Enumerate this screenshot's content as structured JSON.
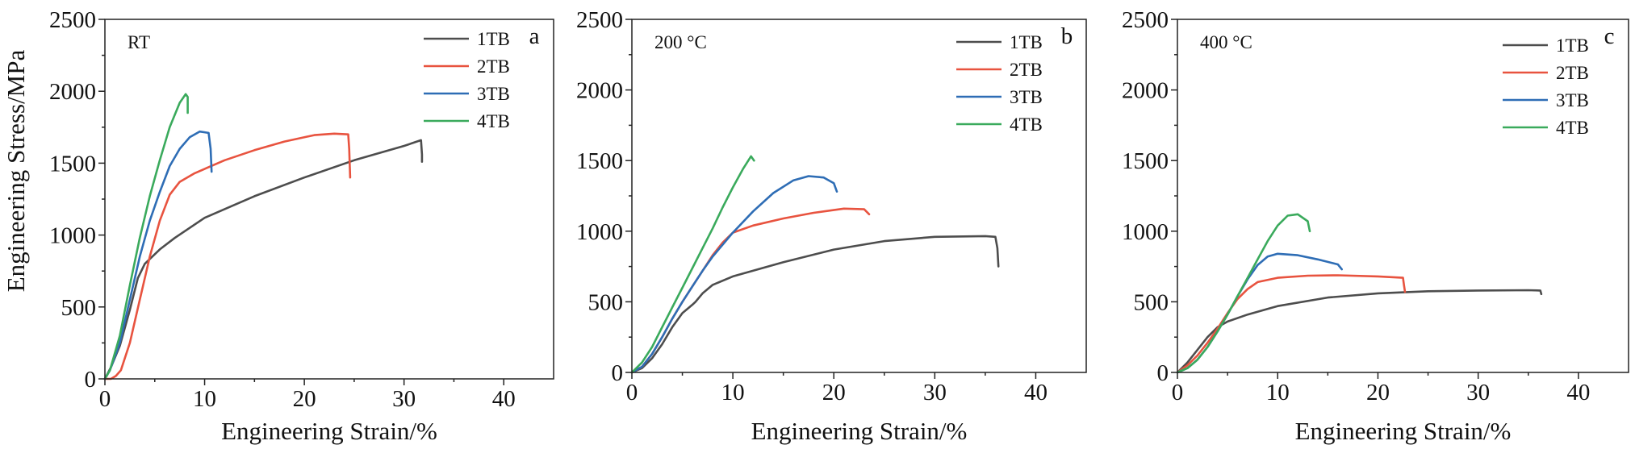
{
  "chart_data": [
    {
      "type": "line",
      "panel_label": "a",
      "condition": "RT",
      "xlabel": "Engineering Strain/%",
      "ylabel": "Engineering Stress/MPa",
      "xlim": [
        0,
        45
      ],
      "ylim": [
        0,
        2500
      ],
      "xticks": [
        0,
        10,
        20,
        30,
        40
      ],
      "yticks": [
        0,
        500,
        1000,
        1500,
        2000,
        2500
      ],
      "legend_position": "top-right",
      "series": [
        {
          "name": "1TB",
          "color": "#4d4d4d",
          "points": [
            [
              0,
              0
            ],
            [
              0.6,
              80
            ],
            [
              1.5,
              230
            ],
            [
              2.5,
              480
            ],
            [
              3.3,
              700
            ],
            [
              4,
              800
            ],
            [
              5.5,
              900
            ],
            [
              7,
              980
            ],
            [
              10,
              1120
            ],
            [
              15,
              1270
            ],
            [
              20,
              1400
            ],
            [
              25,
              1520
            ],
            [
              30,
              1620
            ],
            [
              31.7,
              1660
            ],
            [
              31.8,
              1560
            ],
            [
              31.8,
              1510
            ]
          ]
        },
        {
          "name": "2TB",
          "color": "#e8533f",
          "points": [
            [
              0,
              0
            ],
            [
              0.6,
              0
            ],
            [
              1.1,
              20
            ],
            [
              1.6,
              60
            ],
            [
              2.5,
              250
            ],
            [
              3.5,
              550
            ],
            [
              4.5,
              850
            ],
            [
              5.5,
              1100
            ],
            [
              6.5,
              1280
            ],
            [
              7.5,
              1370
            ],
            [
              9,
              1430
            ],
            [
              12,
              1520
            ],
            [
              15,
              1590
            ],
            [
              18,
              1650
            ],
            [
              21,
              1695
            ],
            [
              23,
              1705
            ],
            [
              24.4,
              1700
            ],
            [
              24.5,
              1600
            ],
            [
              24.6,
              1400
            ]
          ]
        },
        {
          "name": "3TB",
          "color": "#2e6db5",
          "points": [
            [
              0,
              0
            ],
            [
              0.5,
              60
            ],
            [
              1.5,
              250
            ],
            [
              2.5,
              550
            ],
            [
              3.5,
              850
            ],
            [
              4.5,
              1100
            ],
            [
              5.5,
              1300
            ],
            [
              6.5,
              1480
            ],
            [
              7.5,
              1600
            ],
            [
              8.5,
              1680
            ],
            [
              9.5,
              1720
            ],
            [
              10.4,
              1710
            ],
            [
              10.6,
              1600
            ],
            [
              10.7,
              1440
            ]
          ]
        },
        {
          "name": "4TB",
          "color": "#3aaa5c",
          "points": [
            [
              0,
              0
            ],
            [
              0.5,
              60
            ],
            [
              1.5,
              300
            ],
            [
              2.5,
              650
            ],
            [
              3.5,
              980
            ],
            [
              4.5,
              1270
            ],
            [
              5.5,
              1520
            ],
            [
              6.5,
              1750
            ],
            [
              7.5,
              1920
            ],
            [
              8.1,
              1980
            ],
            [
              8.3,
              1960
            ],
            [
              8.3,
              1850
            ]
          ]
        }
      ]
    },
    {
      "type": "line",
      "panel_label": "b",
      "condition": "200 °C",
      "xlabel": "Engineering Strain/%",
      "ylabel": "",
      "xlim": [
        0,
        45
      ],
      "ylim": [
        0,
        2500
      ],
      "xticks": [
        0,
        10,
        20,
        30,
        40
      ],
      "yticks": [
        0,
        500,
        1000,
        1500,
        2000,
        2500
      ],
      "legend_position": "top-right",
      "series": [
        {
          "name": "1TB",
          "color": "#4d4d4d",
          "points": [
            [
              0,
              0
            ],
            [
              1,
              30
            ],
            [
              2,
              100
            ],
            [
              3,
              200
            ],
            [
              4,
              320
            ],
            [
              5,
              420
            ],
            [
              6,
              480
            ],
            [
              6.3,
              500
            ],
            [
              7,
              560
            ],
            [
              8,
              620
            ],
            [
              10,
              680
            ],
            [
              15,
              780
            ],
            [
              20,
              870
            ],
            [
              25,
              930
            ],
            [
              30,
              960
            ],
            [
              35,
              965
            ],
            [
              36,
              960
            ],
            [
              36.2,
              880
            ],
            [
              36.3,
              750
            ]
          ]
        },
        {
          "name": "2TB",
          "color": "#e8533f",
          "points": [
            [
              0,
              0
            ],
            [
              1,
              40
            ],
            [
              2,
              130
            ],
            [
              3,
              250
            ],
            [
              4,
              380
            ],
            [
              5,
              500
            ],
            [
              6,
              610
            ],
            [
              7,
              720
            ],
            [
              8,
              830
            ],
            [
              9,
              920
            ],
            [
              10,
              990
            ],
            [
              12,
              1040
            ],
            [
              15,
              1090
            ],
            [
              18,
              1130
            ],
            [
              21,
              1160
            ],
            [
              23,
              1155
            ],
            [
              23.5,
              1120
            ]
          ]
        },
        {
          "name": "3TB",
          "color": "#2e6db5",
          "points": [
            [
              0,
              0
            ],
            [
              1,
              40
            ],
            [
              2,
              130
            ],
            [
              3,
              250
            ],
            [
              4,
              380
            ],
            [
              5,
              500
            ],
            [
              6,
              610
            ],
            [
              7,
              720
            ],
            [
              8,
              820
            ],
            [
              10,
              990
            ],
            [
              12,
              1140
            ],
            [
              14,
              1270
            ],
            [
              16,
              1360
            ],
            [
              17.5,
              1390
            ],
            [
              19,
              1380
            ],
            [
              20,
              1340
            ],
            [
              20.3,
              1280
            ]
          ]
        },
        {
          "name": "4TB",
          "color": "#3aaa5c",
          "points": [
            [
              0,
              0
            ],
            [
              1,
              70
            ],
            [
              2,
              180
            ],
            [
              3,
              320
            ],
            [
              4,
              460
            ],
            [
              5,
              600
            ],
            [
              6,
              740
            ],
            [
              7,
              880
            ],
            [
              8,
              1020
            ],
            [
              9,
              1170
            ],
            [
              10,
              1310
            ],
            [
              11,
              1440
            ],
            [
              11.8,
              1530
            ],
            [
              12.1,
              1500
            ]
          ]
        }
      ]
    },
    {
      "type": "line",
      "panel_label": "c",
      "condition": "400 °C",
      "xlabel": "Engineering Strain/%",
      "ylabel": "",
      "xlim": [
        0,
        45
      ],
      "ylim": [
        0,
        2500
      ],
      "xticks": [
        0,
        10,
        20,
        30,
        40
      ],
      "yticks": [
        0,
        500,
        1000,
        1500,
        2000,
        2500
      ],
      "legend_position": "top-right",
      "series": [
        {
          "name": "1TB",
          "color": "#4d4d4d",
          "points": [
            [
              0,
              0
            ],
            [
              1,
              70
            ],
            [
              2,
              160
            ],
            [
              3,
              250
            ],
            [
              4,
              320
            ],
            [
              5,
              360
            ],
            [
              7,
              410
            ],
            [
              10,
              470
            ],
            [
              15,
              530
            ],
            [
              20,
              560
            ],
            [
              25,
              575
            ],
            [
              30,
              580
            ],
            [
              35,
              582
            ],
            [
              36.2,
              580
            ],
            [
              36.3,
              555
            ]
          ]
        },
        {
          "name": "2TB",
          "color": "#e8533f",
          "points": [
            [
              0,
              0
            ],
            [
              1,
              50
            ],
            [
              2,
              120
            ],
            [
              3,
              210
            ],
            [
              4,
              310
            ],
            [
              5,
              420
            ],
            [
              6,
              520
            ],
            [
              7,
              590
            ],
            [
              8,
              640
            ],
            [
              10,
              670
            ],
            [
              13,
              685
            ],
            [
              16,
              688
            ],
            [
              20,
              680
            ],
            [
              22.5,
              670
            ],
            [
              22.6,
              620
            ],
            [
              22.7,
              570
            ]
          ]
        },
        {
          "name": "3TB",
          "color": "#2e6db5",
          "points": [
            [
              0,
              0
            ],
            [
              1,
              30
            ],
            [
              2,
              90
            ],
            [
              3,
              180
            ],
            [
              4,
              290
            ],
            [
              5,
              410
            ],
            [
              6,
              540
            ],
            [
              7,
              660
            ],
            [
              8,
              760
            ],
            [
              9,
              820
            ],
            [
              10,
              840
            ],
            [
              12,
              830
            ],
            [
              14,
              800
            ],
            [
              16,
              765
            ],
            [
              16.4,
              730
            ]
          ]
        },
        {
          "name": "4TB",
          "color": "#3aaa5c",
          "points": [
            [
              0,
              0
            ],
            [
              1,
              30
            ],
            [
              2,
              90
            ],
            [
              3,
              180
            ],
            [
              4,
              290
            ],
            [
              5,
              410
            ],
            [
              6,
              540
            ],
            [
              7,
              670
            ],
            [
              8,
              800
            ],
            [
              9,
              930
            ],
            [
              10,
              1040
            ],
            [
              11,
              1110
            ],
            [
              12,
              1120
            ],
            [
              13,
              1070
            ],
            [
              13.2,
              1000
            ]
          ]
        }
      ]
    }
  ]
}
